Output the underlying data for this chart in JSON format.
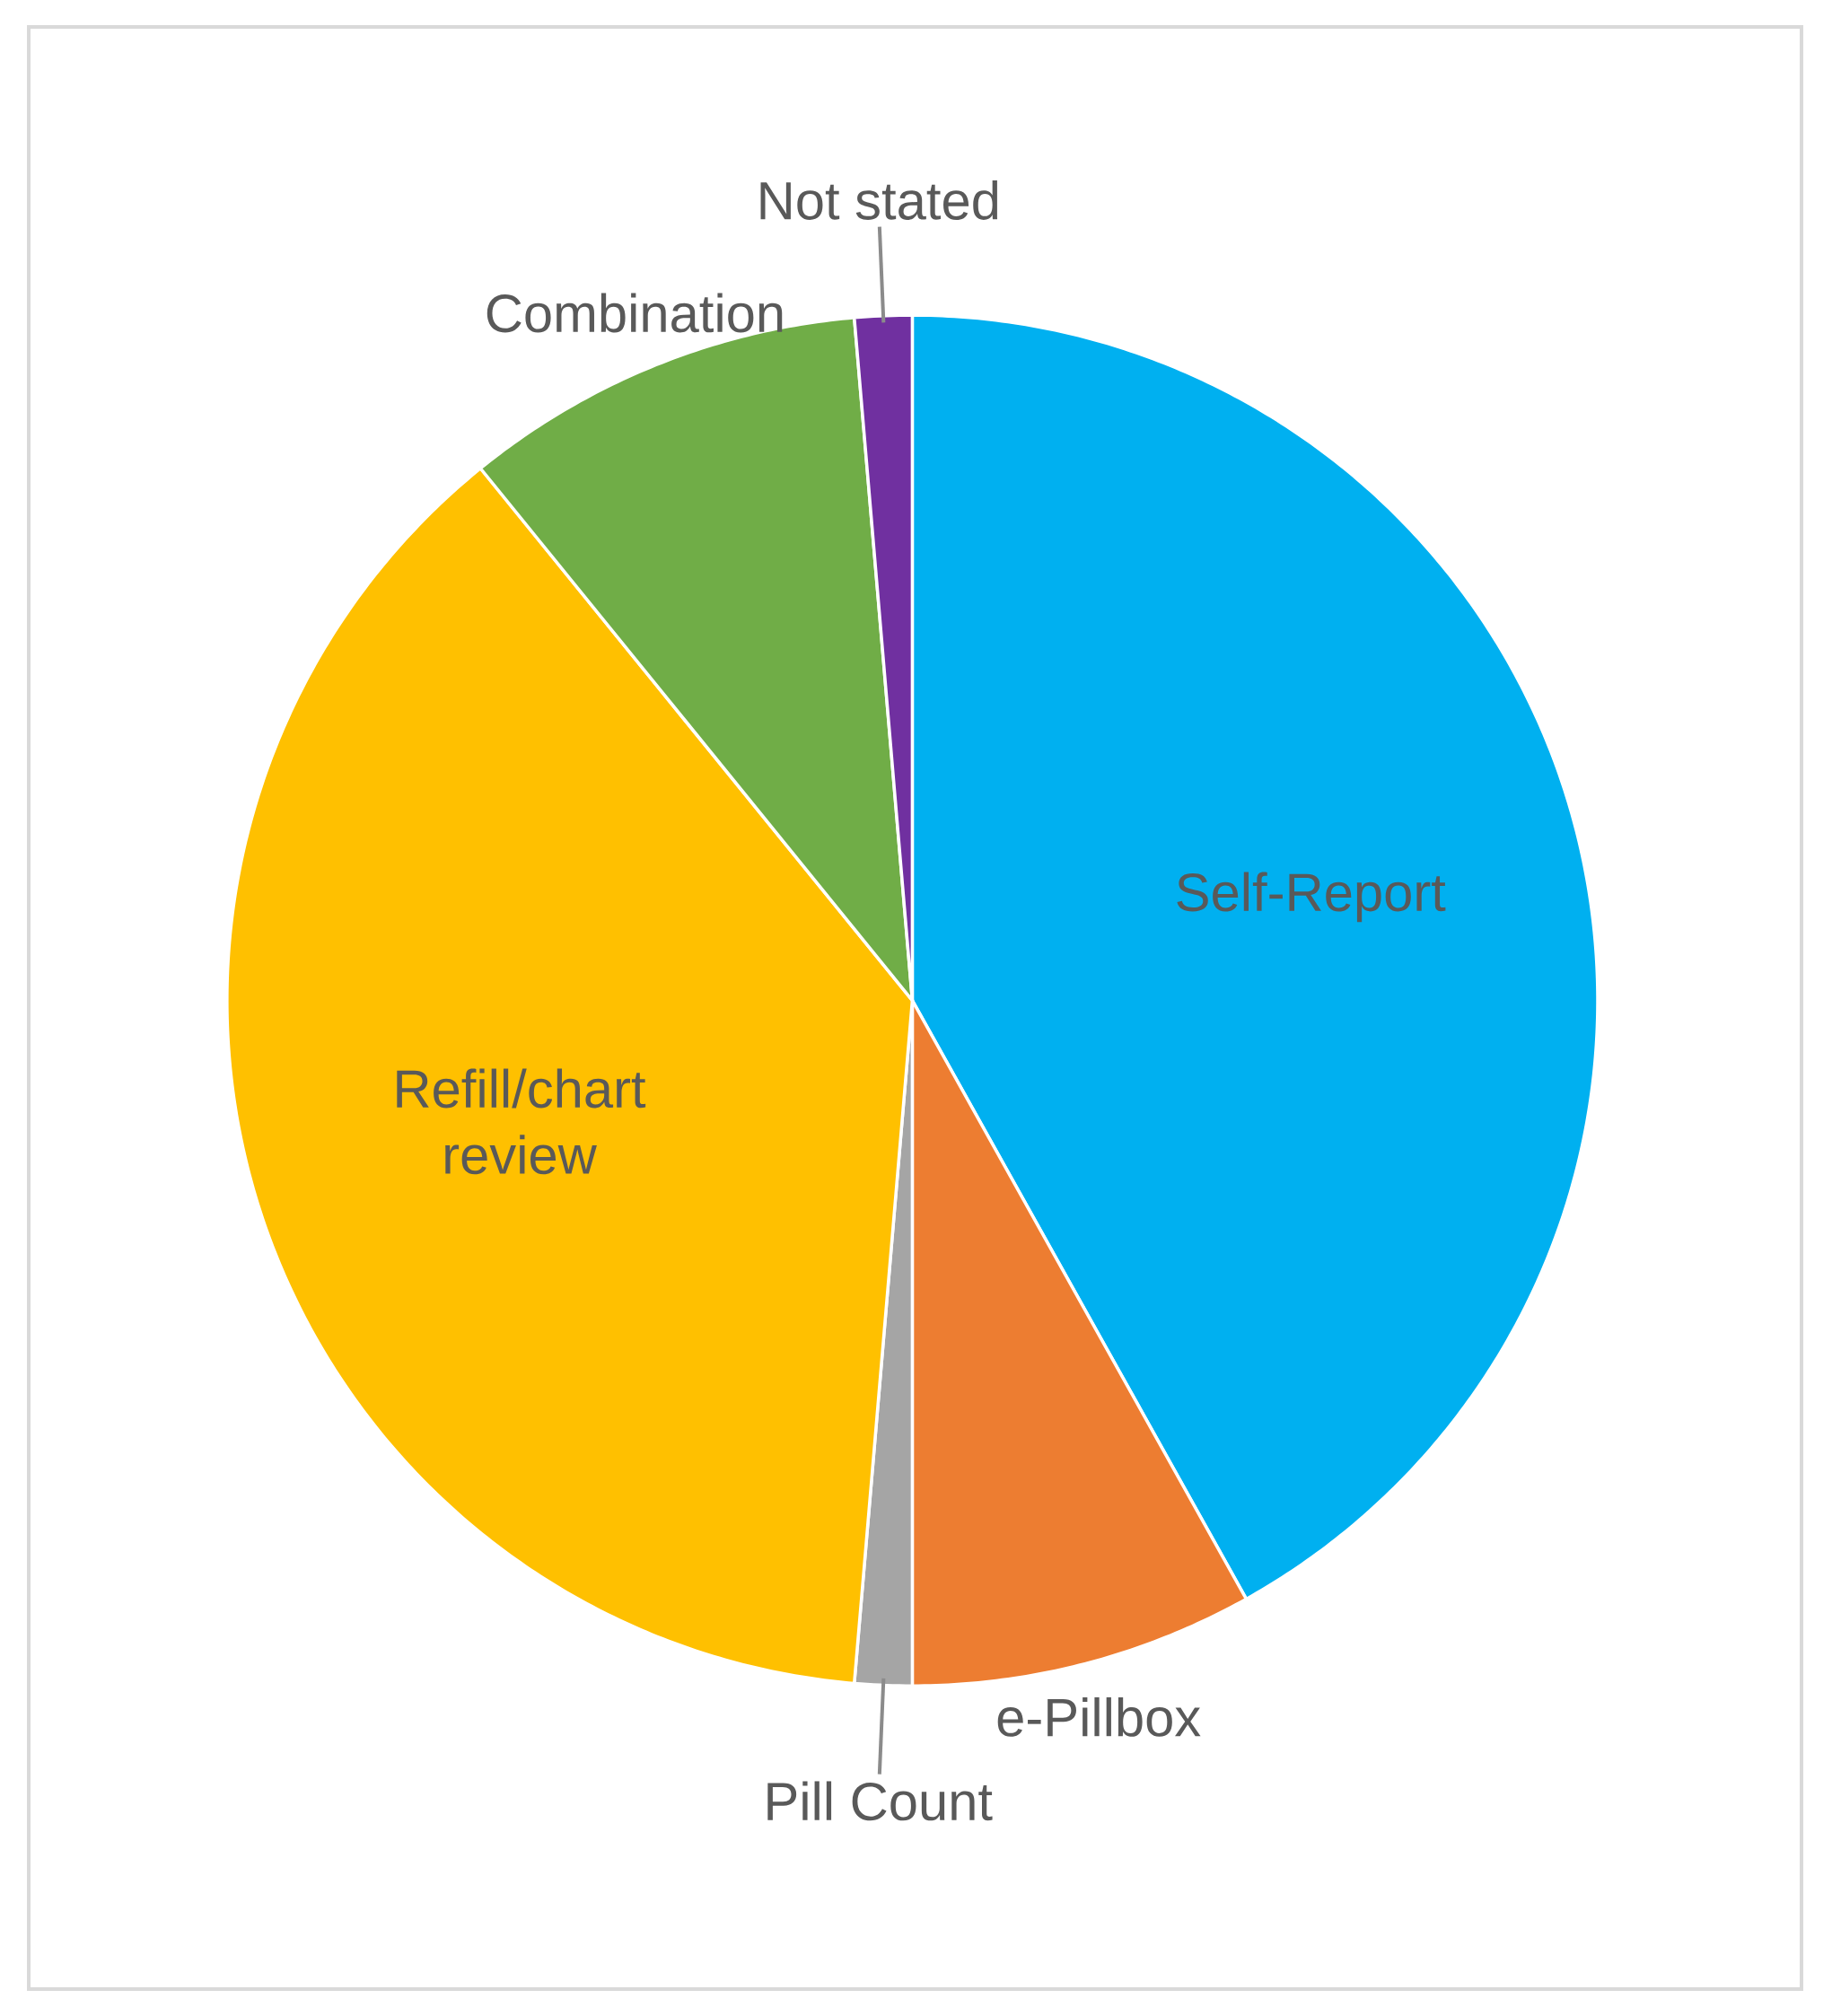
{
  "chart_data": {
    "type": "pie",
    "categories": [
      "Self-Report",
      "e-Pillbox",
      "Pill Count",
      "Refill/chart review",
      "Combination",
      "Not stated"
    ],
    "values": [
      41.9,
      8.1,
      1.35,
      37.8,
      9.5,
      1.35
    ],
    "colors": [
      "#00b0f0",
      "#ed7d31",
      "#a5a5a5",
      "#ffc000",
      "#70ad47",
      "#7030a0"
    ]
  }
}
